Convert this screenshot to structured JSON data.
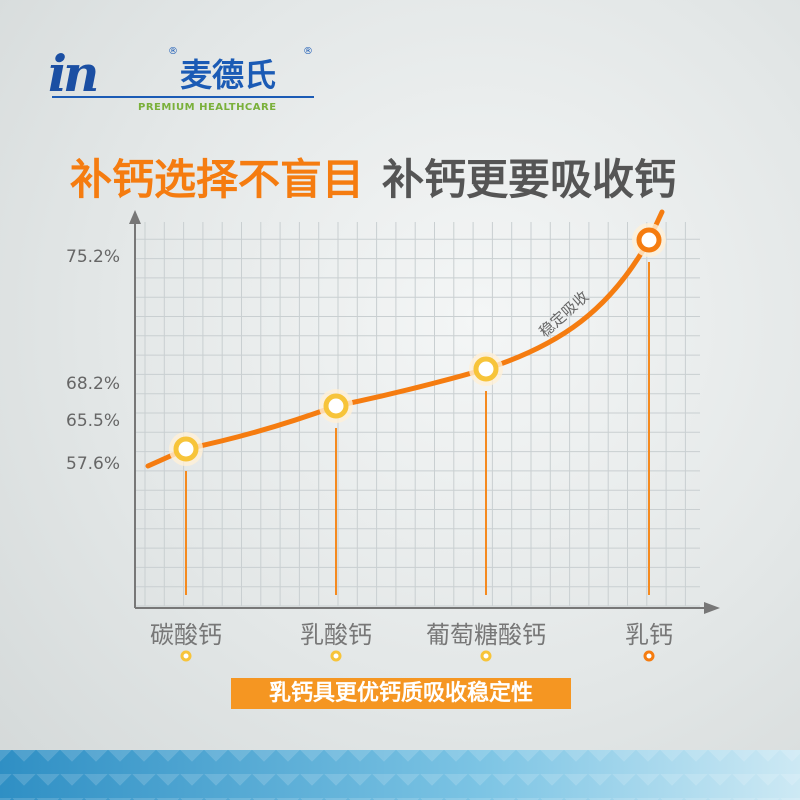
{
  "logo": {
    "mark": "in",
    "name": "麦德氏",
    "registered": "®",
    "tagline": "PREMIUM HEALTHCARE"
  },
  "headline": {
    "part1": "补钙选择不盲目",
    "part2": "补钙更要吸收钙"
  },
  "chart_data": {
    "type": "line",
    "categories": [
      "碳酸钙",
      "乳酸钙",
      "葡萄糖酸钙",
      "乳钙"
    ],
    "values": [
      57.6,
      65.5,
      68.2,
      75.2
    ],
    "ytick_labels": [
      "75.2%",
      "68.2%",
      "65.5%",
      "57.6%"
    ],
    "annotation": "稳定吸收",
    "grid": true,
    "colors": {
      "line": "#f57c10",
      "marker": "#f7c43a",
      "highlight": "#f57c10"
    }
  },
  "note": "乳钙具更优钙质吸收稳定性"
}
